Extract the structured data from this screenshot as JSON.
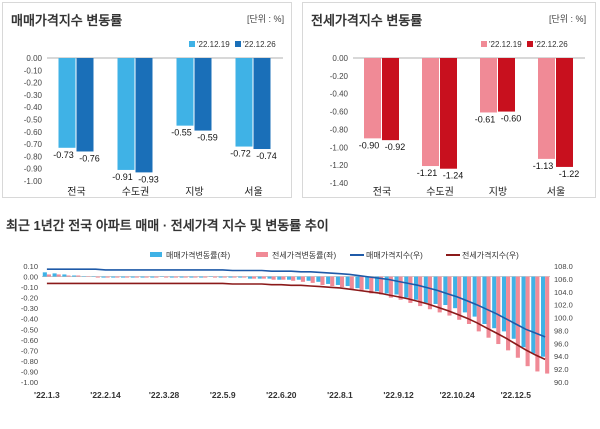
{
  "colors": {
    "sale_prev": "#3fb2e6",
    "sale_curr": "#1a6fb8",
    "jeonse_prev": "#f08a96",
    "jeonse_curr": "#c8101e",
    "sale_index_line": "#1f5aa8",
    "jeonse_index_line": "#8b1a1a"
  },
  "chart_data": [
    {
      "type": "bar",
      "title": "매매가격지수 변동률",
      "unit_label": "[단위 : %]",
      "categories": [
        "전국",
        "수도권",
        "지방",
        "서울"
      ],
      "series": [
        {
          "name": "'22.12.19",
          "values": [
            -0.73,
            -0.91,
            -0.55,
            -0.72
          ]
        },
        {
          "name": "'22.12.26",
          "values": [
            -0.76,
            -0.93,
            -0.59,
            -0.74
          ]
        }
      ],
      "value_labels": [
        [
          "-0.73",
          "-0.91",
          "-0.55",
          "-0.72"
        ],
        [
          "-0.76",
          "-0.93",
          "-0.59",
          "-0.74"
        ]
      ],
      "ylim": [
        -1.0,
        0.0
      ],
      "yticks": [
        "0.00",
        "-0.10",
        "-0.20",
        "-0.30",
        "-0.40",
        "-0.50",
        "-0.60",
        "-0.70",
        "-0.80",
        "-0.90",
        "-1.00"
      ],
      "legend": "top-right"
    },
    {
      "type": "bar",
      "title": "전세가격지수 변동률",
      "unit_label": "[단위 : %]",
      "categories": [
        "전국",
        "수도권",
        "지방",
        "서울"
      ],
      "series": [
        {
          "name": "'22.12.19",
          "values": [
            -0.9,
            -1.21,
            -0.61,
            -1.13
          ]
        },
        {
          "name": "'22.12.26",
          "values": [
            -0.92,
            -1.24,
            -0.6,
            -1.22
          ]
        }
      ],
      "value_labels": [
        [
          "-0.90",
          "-1.21",
          "-0.61",
          "-1.13"
        ],
        [
          "-0.92",
          "-1.24",
          "-0.60",
          "-1.22"
        ]
      ],
      "ylim": [
        -1.4,
        0.0
      ],
      "yticks": [
        "0.00",
        "-0.20",
        "-0.40",
        "-0.60",
        "-0.80",
        "-1.00",
        "-1.20",
        "-1.40"
      ],
      "legend": "top-right"
    },
    {
      "type": "bar",
      "title": "최근 1년간 전국 아파트 매매 · 전세가격 지수 및 변동률 추이",
      "x_tick_labels": [
        "'22.1.3",
        "'22.2.14",
        "'22.3.28",
        "'22.5.9",
        "'22.6.20",
        "'22.8.1",
        "'22.9.12",
        "'22.10.24",
        "'22.12.5"
      ],
      "left_yticks": [
        "0.10",
        "0.00",
        "-0.10",
        "-0.20",
        "-0.30",
        "-0.40",
        "-0.50",
        "-0.60",
        "-0.70",
        "-0.80",
        "-0.90",
        "-1.00"
      ],
      "left_ylim": [
        -1.0,
        0.1
      ],
      "right_yticks": [
        "108.0",
        "106.0",
        "104.0",
        "102.0",
        "100.0",
        "98.0",
        "96.0",
        "94.0",
        "92.0",
        "90.0"
      ],
      "right_ylim": [
        90.0,
        108.0
      ],
      "legend": [
        "매매가격변동률(좌)",
        "전세가격변동률(좌)",
        "매매가격지수(우)",
        "전세가격지수(우)"
      ],
      "weeks": 52,
      "series": [
        {
          "name": "매매가격변동률(좌)",
          "axis": "left",
          "kind": "bar",
          "values": [
            0.04,
            0.03,
            0.02,
            0.01,
            0.0,
            0.0,
            -0.01,
            -0.01,
            -0.01,
            -0.01,
            -0.01,
            -0.01,
            0.0,
            -0.01,
            -0.01,
            -0.01,
            -0.01,
            0.0,
            -0.01,
            -0.01,
            -0.01,
            -0.02,
            -0.02,
            -0.02,
            -0.03,
            -0.03,
            -0.03,
            -0.04,
            -0.05,
            -0.07,
            -0.08,
            -0.09,
            -0.11,
            -0.12,
            -0.14,
            -0.16,
            -0.17,
            -0.2,
            -0.22,
            -0.25,
            -0.26,
            -0.27,
            -0.3,
            -0.34,
            -0.38,
            -0.45,
            -0.49,
            -0.52,
            -0.59,
            -0.67,
            -0.73,
            -0.76
          ]
        },
        {
          "name": "전세가격변동률(좌)",
          "axis": "left",
          "kind": "bar",
          "values": [
            0.02,
            0.02,
            0.01,
            0.01,
            0.0,
            -0.01,
            -0.01,
            -0.01,
            -0.01,
            -0.01,
            -0.01,
            -0.01,
            -0.01,
            -0.01,
            -0.01,
            -0.01,
            -0.01,
            -0.01,
            -0.01,
            -0.01,
            -0.01,
            -0.02,
            -0.02,
            -0.03,
            -0.03,
            -0.04,
            -0.05,
            -0.06,
            -0.08,
            -0.09,
            -0.1,
            -0.12,
            -0.14,
            -0.16,
            -0.17,
            -0.2,
            -0.22,
            -0.25,
            -0.28,
            -0.31,
            -0.34,
            -0.37,
            -0.41,
            -0.45,
            -0.52,
            -0.58,
            -0.64,
            -0.7,
            -0.77,
            -0.85,
            -0.9,
            -0.92
          ]
        },
        {
          "name": "매매가격지수(우)",
          "axis": "right",
          "kind": "line",
          "values": [
            107.5,
            107.5,
            107.5,
            107.5,
            107.5,
            107.5,
            107.4,
            107.4,
            107.4,
            107.4,
            107.4,
            107.4,
            107.4,
            107.4,
            107.4,
            107.4,
            107.4,
            107.4,
            107.4,
            107.3,
            107.3,
            107.3,
            107.3,
            107.2,
            107.2,
            107.2,
            107.1,
            107.1,
            107.0,
            106.9,
            106.8,
            106.7,
            106.5,
            106.3,
            106.1,
            105.9,
            105.6,
            105.3,
            105.0,
            104.6,
            104.2,
            103.7,
            103.2,
            102.6,
            102.0,
            101.3,
            100.6,
            99.8,
            99.0,
            98.2,
            97.6,
            97.0
          ]
        },
        {
          "name": "전세가격지수(우)",
          "axis": "right",
          "kind": "line",
          "values": [
            105.3,
            105.3,
            105.3,
            105.3,
            105.3,
            105.3,
            105.3,
            105.3,
            105.3,
            105.3,
            105.3,
            105.3,
            105.3,
            105.3,
            105.3,
            105.3,
            105.3,
            105.3,
            105.3,
            105.2,
            105.2,
            105.2,
            105.2,
            105.1,
            105.1,
            105.0,
            105.0,
            104.9,
            104.8,
            104.7,
            104.6,
            104.4,
            104.2,
            104.0,
            103.8,
            103.5,
            103.2,
            102.9,
            102.5,
            102.1,
            101.6,
            101.1,
            100.5,
            99.9,
            99.2,
            98.4,
            97.6,
            96.8,
            95.9,
            95.0,
            94.2,
            93.5
          ]
        }
      ]
    }
  ]
}
